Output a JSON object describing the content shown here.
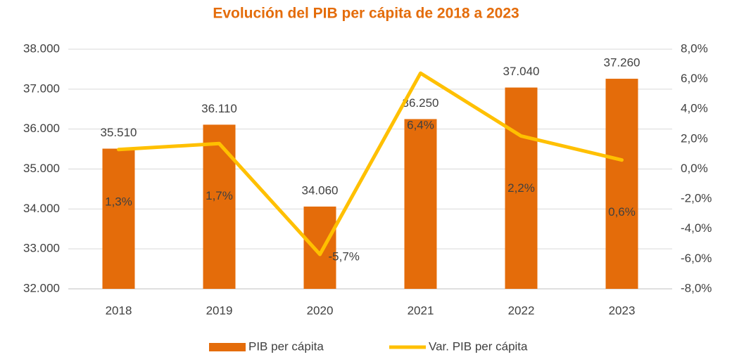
{
  "chart_data": {
    "type": "bar_line",
    "title": "Evolución del PIB per cápita de 2018 a 2023",
    "categories": [
      "2018",
      "2019",
      "2020",
      "2021",
      "2022",
      "2023"
    ],
    "series": [
      {
        "name": "PIB per cápita",
        "color": "#e46c0a",
        "type": "bar",
        "values": [
          35510,
          36110,
          34060,
          36250,
          37040,
          37260
        ],
        "value_labels": [
          "35.510",
          "36.110",
          "34.060",
          "36.250",
          "37.040",
          "37.260"
        ]
      },
      {
        "name": "Var. PIB per cápita",
        "color": "#ffc000",
        "type": "line",
        "axis": "y2",
        "values": [
          1.3,
          1.7,
          -5.7,
          6.4,
          2.2,
          0.6
        ],
        "value_labels": [
          "1,3%",
          "1,7%",
          "-5,7%",
          "6,4%",
          "2,2%",
          "0,6%"
        ]
      }
    ],
    "ylim": [
      32000,
      38000
    ],
    "yticks": [
      {
        "value": 32000,
        "label": "32.000"
      },
      {
        "value": 33000,
        "label": "33.000"
      },
      {
        "value": 34000,
        "label": "34.000"
      },
      {
        "value": 35000,
        "label": "35.000"
      },
      {
        "value": 36000,
        "label": "36.000"
      },
      {
        "value": 37000,
        "label": "37.000"
      },
      {
        "value": 38000,
        "label": "38.000"
      }
    ],
    "y2lim": [
      -8,
      8
    ],
    "y2ticks": [
      {
        "value": -8,
        "label": "-8,0%"
      },
      {
        "value": -6,
        "label": "-6,0%"
      },
      {
        "value": -4,
        "label": "-4,0%"
      },
      {
        "value": -2,
        "label": "-2,0%"
      },
      {
        "value": 0,
        "label": "0,0%"
      },
      {
        "value": 2,
        "label": "2,0%"
      },
      {
        "value": 4,
        "label": "4,0%"
      },
      {
        "value": 6,
        "label": "6,0%"
      },
      {
        "value": 8,
        "label": "8,0%"
      }
    ],
    "grid": true,
    "legend": "bottom"
  }
}
